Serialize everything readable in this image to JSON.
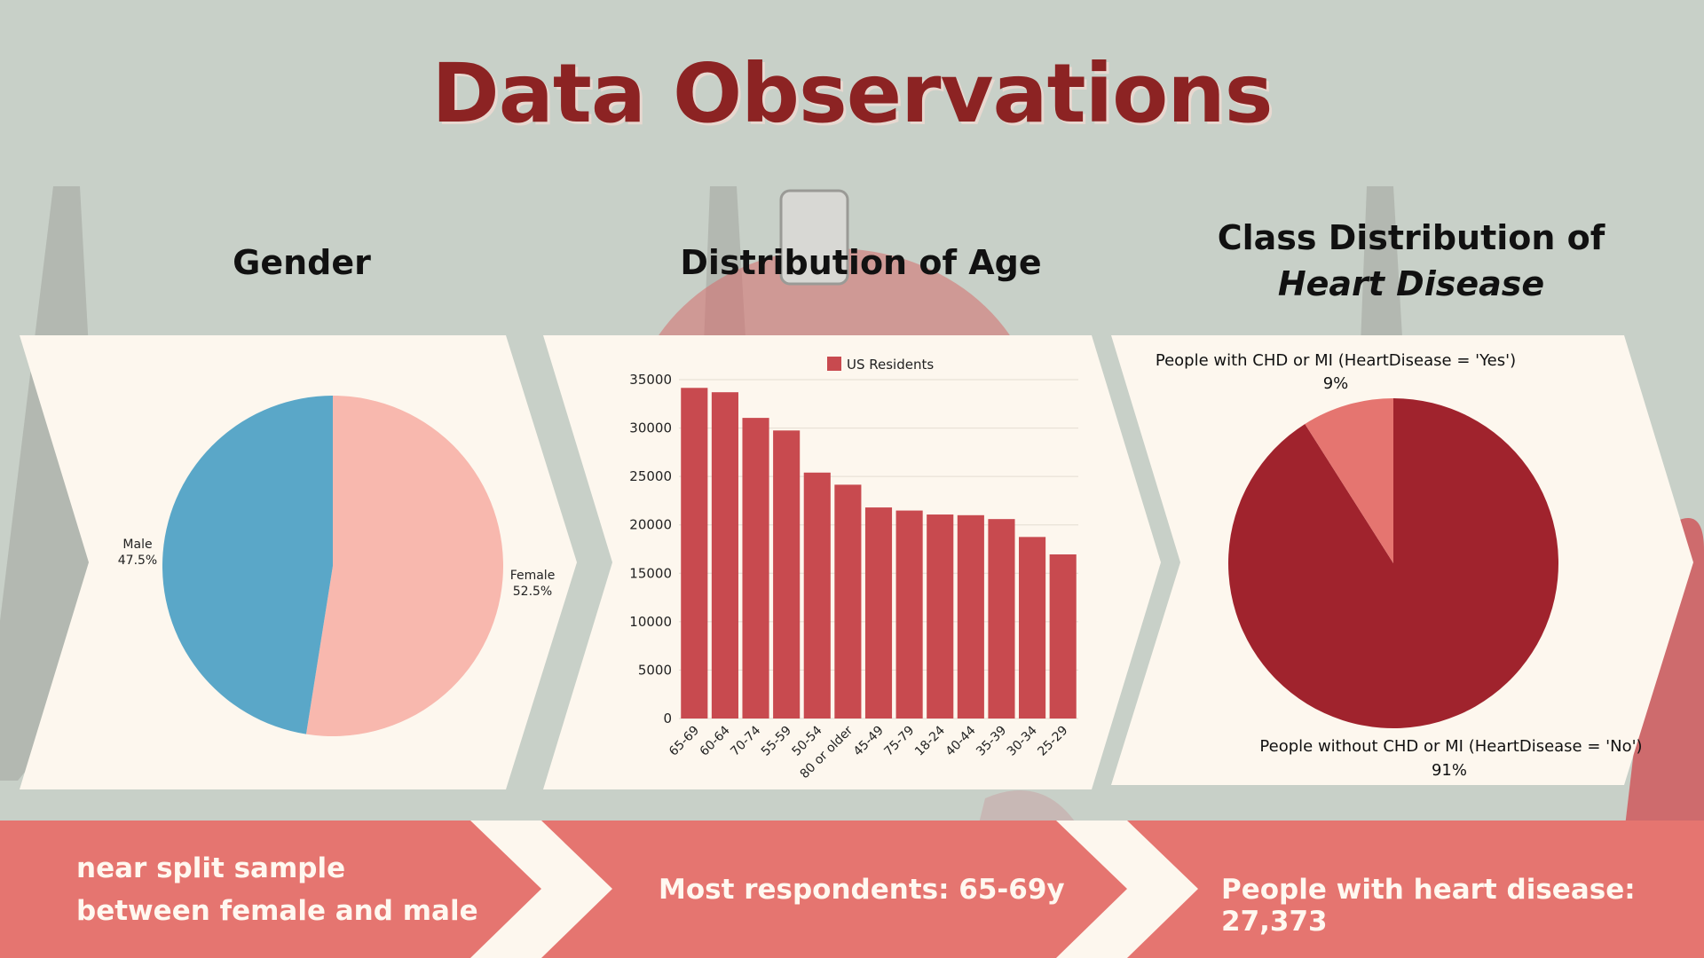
{
  "title": "Data Observations",
  "panels": {
    "gender_title": "Gender",
    "age_title": "Distribution of Age",
    "class_title_line1": "Class Distribution of",
    "class_title_line2": "Heart Disease"
  },
  "colors": {
    "background": "#c8d0c8",
    "panel": "#fdf7ee",
    "title": "#8c2323",
    "banner": "#e57570",
    "male": "#5aa7c8",
    "female": "#f8b8ae",
    "bar": "#c84a4f",
    "no_disease": "#a0232d",
    "yes_disease": "#e57570"
  },
  "chart_data": [
    {
      "type": "pie",
      "title": "Gender",
      "slices": [
        {
          "label": "Male",
          "value": 47.5,
          "display": "47.5%"
        },
        {
          "label": "Female",
          "value": 52.5,
          "display": "52.5%"
        }
      ]
    },
    {
      "type": "bar",
      "title": "Distribution of Age",
      "legend": "US Residents",
      "legend_position": "top",
      "categories": [
        "65-69",
        "60-64",
        "70-74",
        "55-59",
        "50-54",
        "80 or older",
        "45-49",
        "75-79",
        "18-24",
        "40-44",
        "35-39",
        "30-34",
        "25-29"
      ],
      "values": [
        34150,
        33700,
        31050,
        29750,
        25400,
        24150,
        21800,
        21480,
        21070,
        21000,
        20600,
        18750,
        16950
      ],
      "yticks": [
        "0",
        "5000",
        "10000",
        "15000",
        "20000",
        "25000",
        "30000",
        "35000"
      ],
      "ylim": [
        0,
        35000
      ],
      "grid": true
    },
    {
      "type": "pie",
      "title": "Class Distribution of Heart Disease",
      "slices": [
        {
          "label": "People without CHD or MI (HeartDisease = 'No')",
          "value": 91,
          "display": "91%"
        },
        {
          "label": "People with CHD or MI (HeartDisease = 'Yes')",
          "value": 9,
          "display": "9%"
        }
      ]
    }
  ],
  "banner": {
    "gender_line1": "near split sample",
    "gender_line2": "between female and male",
    "age_text": "Most respondents: 65-69y",
    "class_text": "People with heart disease: 27,373"
  }
}
